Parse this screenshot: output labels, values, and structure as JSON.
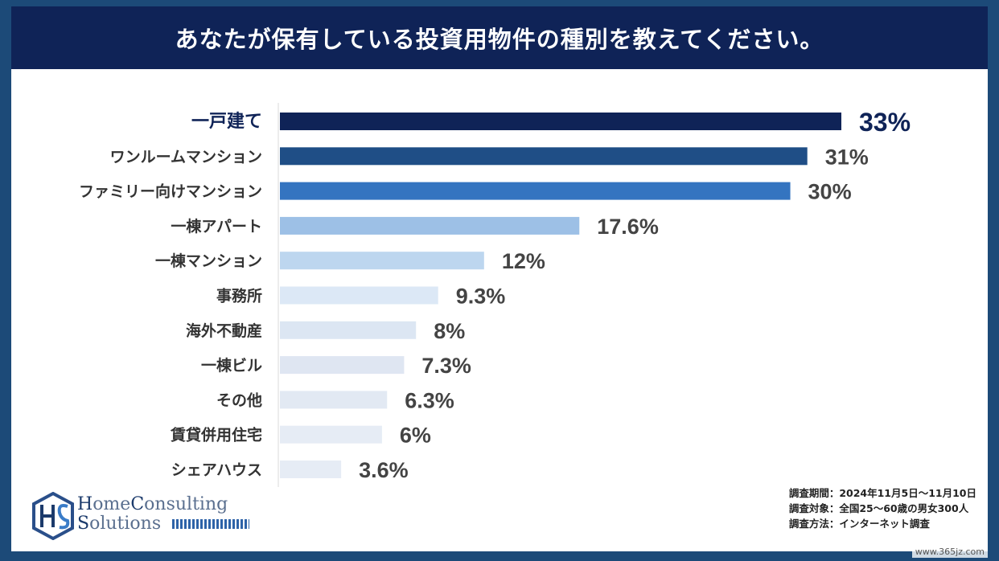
{
  "header": {
    "title": "あなたが保有している投資用物件の種別を教えてください。"
  },
  "chart_data": {
    "type": "bar",
    "orientation": "horizontal",
    "title": "あなたが保有している投資用物件の種別を教えてください。",
    "categories": [
      "一戸建て",
      "ワンルームマンション",
      "ファミリー向けマンション",
      "一棟アパート",
      "一棟マンション",
      "事務所",
      "海外不動産",
      "一棟ビル",
      "その他",
      "賃貸併用住宅",
      "シェアハウス"
    ],
    "values": [
      33,
      31,
      30,
      17.6,
      12,
      9.3,
      8,
      7.3,
      6.3,
      6,
      3.6
    ],
    "value_labels": [
      "33%",
      "31%",
      "30%",
      "17.6%",
      "12%",
      "9.3%",
      "8%",
      "7.3%",
      "6.3%",
      "6%",
      "3.6%"
    ],
    "bar_colors": [
      "#0f2357",
      "#1f4e86",
      "#3474c0",
      "#9dc0e6",
      "#bdd6ef",
      "#dce8f6",
      "#dce6f3",
      "#dfe6f2",
      "#e2e9f3",
      "#e6ecf5",
      "#e6ecf5"
    ],
    "xlim": [
      0,
      33
    ],
    "xlabel": "",
    "ylabel": "",
    "grid": false,
    "legend": "none"
  },
  "notes": {
    "period": "調査期間：2024年11月5日～11月10日",
    "target": "調査対象：全国25～60歳の男女300人",
    "method": "調査方法：インターネット調査"
  },
  "logo": {
    "line1_a": "H",
    "line1_b": "ome",
    "line1_c": "C",
    "line1_d": "onsulting",
    "line2_a": "S",
    "line2_b": "olutions"
  },
  "watermark": "www.365jz.com"
}
